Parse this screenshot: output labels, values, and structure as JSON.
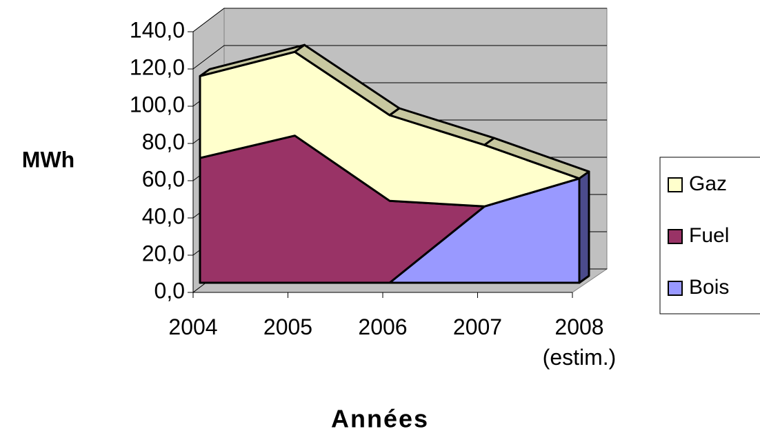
{
  "chart_data": {
    "type": "area3d_stacked",
    "y_label": "MWh",
    "x_label": "Années",
    "categories": [
      "2004",
      "2005",
      "2006",
      "2007",
      "2008 (estim.)"
    ],
    "series": [
      {
        "name": "Bois",
        "color": "#9999ff",
        "values": [
          0,
          0,
          0,
          41,
          56
        ]
      },
      {
        "name": "Fuel",
        "color": "#993366",
        "values": [
          67,
          79,
          44,
          0,
          0
        ]
      },
      {
        "name": "Gaz",
        "color": "#ffffcc",
        "values": [
          44,
          45,
          46,
          33,
          0
        ]
      }
    ],
    "ylim": [
      0,
      140
    ],
    "yticks": [
      {
        "value": 0,
        "label": "0,0"
      },
      {
        "value": 20,
        "label": "20,0"
      },
      {
        "value": 40,
        "label": "40,0"
      },
      {
        "value": 60,
        "label": "60,0"
      },
      {
        "value": 80,
        "label": "80,0"
      },
      {
        "value": 100,
        "label": "100,0"
      },
      {
        "value": 120,
        "label": "120,0"
      },
      {
        "value": 140,
        "label": "140,0"
      }
    ],
    "grid": true,
    "legend": "right"
  }
}
